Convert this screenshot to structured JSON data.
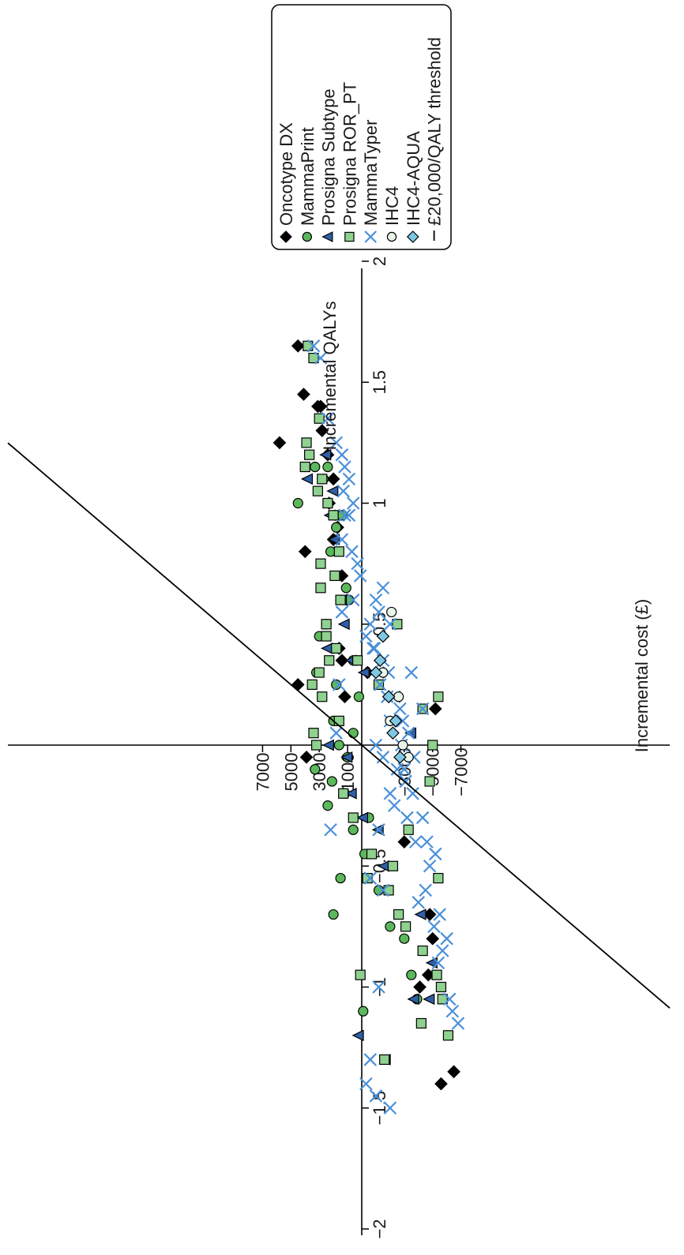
{
  "chart_data": {
    "type": "scatter",
    "rotated": "90deg-clockwise",
    "xlabel": "Incremental QALYs",
    "ylabel": "Incremental cost (£)",
    "xlim": [
      -2,
      2
    ],
    "ylim": [
      -7000,
      8000
    ],
    "x_ticks": [
      -2,
      -1.5,
      -1,
      -0.5,
      0.5,
      1,
      1.5,
      2
    ],
    "x_tick_labels": [
      "−2",
      "−1.5",
      "−1",
      "−0.5",
      "0.5",
      "1",
      "1.5",
      "2"
    ],
    "y_ticks": [
      7000,
      5000,
      3000,
      1000,
      -3000,
      -5000,
      -7000
    ],
    "y_tick_labels": [
      "7000",
      "5000",
      "3000",
      "1000",
      "−3000",
      "−5000",
      "−7000"
    ],
    "grid": false,
    "legend_position": "top-right",
    "threshold": {
      "name": "£20,000/QALY threshold",
      "slope": 20000
    },
    "series": [
      {
        "name": "Oncotype DX",
        "marker": "diamond",
        "color": "#000000",
        "points": [
          [
            1.65,
            4500
          ],
          [
            1.45,
            4100
          ],
          [
            1.4,
            3100
          ],
          [
            1.4,
            2900
          ],
          [
            1.25,
            5800
          ],
          [
            1.3,
            2800
          ],
          [
            1.2,
            2400
          ],
          [
            1.1,
            2000
          ],
          [
            1.0,
            2300
          ],
          [
            0.9,
            1700
          ],
          [
            0.85,
            2000
          ],
          [
            0.8,
            4000
          ],
          [
            0.7,
            1400
          ],
          [
            0.6,
            1000
          ],
          [
            0.4,
            1600
          ],
          [
            0.35,
            1400
          ],
          [
            0.25,
            4500
          ],
          [
            0.2,
            1200
          ],
          [
            -0.05,
            3900
          ],
          [
            -0.4,
            -3000
          ],
          [
            -0.7,
            -4800
          ],
          [
            -0.8,
            -5000
          ],
          [
            -0.95,
            -4700
          ],
          [
            -1.0,
            -4100
          ],
          [
            -1.4,
            -5600
          ],
          [
            -1.35,
            -6500
          ],
          [
            0.15,
            -5200
          ],
          [
            0.3,
            -400
          ]
        ]
      },
      {
        "name": "MammaPrint",
        "marker": "circle",
        "color": "#5cb85c",
        "points": [
          [
            1.0,
            4500
          ],
          [
            1.15,
            2400
          ],
          [
            1.1,
            2700
          ],
          [
            1.15,
            3300
          ],
          [
            0.95,
            1400
          ],
          [
            0.9,
            1800
          ],
          [
            0.8,
            2200
          ],
          [
            0.65,
            1100
          ],
          [
            0.6,
            900
          ],
          [
            0.5,
            2500
          ],
          [
            0.45,
            3000
          ],
          [
            0.3,
            3200
          ],
          [
            0.25,
            1800
          ],
          [
            0.1,
            2000
          ],
          [
            0.05,
            600
          ],
          [
            0.0,
            1600
          ],
          [
            -0.1,
            3300
          ],
          [
            -0.15,
            2100
          ],
          [
            -0.2,
            1200
          ],
          [
            -0.25,
            2400
          ],
          [
            -0.05,
            1000
          ],
          [
            -0.35,
            600
          ],
          [
            -0.45,
            -200
          ],
          [
            -0.55,
            1500
          ],
          [
            -0.7,
            2000
          ],
          [
            -0.75,
            -2000
          ],
          [
            -0.8,
            -3000
          ],
          [
            -0.95,
            -3500
          ],
          [
            -1.05,
            -3900
          ],
          [
            -1.1,
            -100
          ],
          [
            0.2,
            200
          ],
          [
            0.35,
            600
          ],
          [
            -0.3,
            -500
          ],
          [
            -0.6,
            -1200
          ]
        ]
      },
      {
        "name": "Prosigna Subtype",
        "marker": "triangle",
        "color": "#2f5fa7",
        "points": [
          [
            1.2,
            2500
          ],
          [
            1.1,
            3800
          ],
          [
            1.05,
            2000
          ],
          [
            0.95,
            2200
          ],
          [
            0.85,
            1900
          ],
          [
            0.6,
            1400
          ],
          [
            0.4,
            2400
          ],
          [
            0.35,
            700
          ],
          [
            0.0,
            2300
          ],
          [
            -0.05,
            1000
          ],
          [
            -0.2,
            700
          ],
          [
            -0.3,
            -100
          ],
          [
            -0.35,
            -1200
          ],
          [
            -0.5,
            -1600
          ],
          [
            -0.7,
            -4200
          ],
          [
            -1.05,
            -3700
          ],
          [
            -1.05,
            -4800
          ],
          [
            -1.2,
            200
          ],
          [
            -1.3,
            -1700
          ],
          [
            0.05,
            -3500
          ],
          [
            -0.9,
            -5000
          ],
          [
            0.3,
            -200
          ],
          [
            0.5,
            1200
          ]
        ]
      },
      {
        "name": "Prosigna ROR_PT",
        "marker": "square",
        "color": "#8fd18f",
        "points": [
          [
            1.65,
            3800
          ],
          [
            1.6,
            3400
          ],
          [
            1.35,
            3000
          ],
          [
            1.25,
            3900
          ],
          [
            1.2,
            3700
          ],
          [
            1.15,
            4000
          ],
          [
            1.1,
            2800
          ],
          [
            1.05,
            3100
          ],
          [
            1.0,
            2400
          ],
          [
            0.95,
            2000
          ],
          [
            0.8,
            1600
          ],
          [
            0.75,
            2900
          ],
          [
            0.7,
            1900
          ],
          [
            0.65,
            2900
          ],
          [
            0.6,
            1500
          ],
          [
            0.5,
            2500
          ],
          [
            0.45,
            2500
          ],
          [
            0.4,
            1800
          ],
          [
            0.35,
            2300
          ],
          [
            0.3,
            3000
          ],
          [
            0.25,
            3500
          ],
          [
            0.2,
            2800
          ],
          [
            0.1,
            1600
          ],
          [
            0.05,
            3400
          ],
          [
            0.0,
            3200
          ],
          [
            0.2,
            -5400
          ],
          [
            0.15,
            -4300
          ],
          [
            0.0,
            -5000
          ],
          [
            0.5,
            -2500
          ],
          [
            -0.2,
            1300
          ],
          [
            -0.3,
            600
          ],
          [
            -0.45,
            -700
          ],
          [
            -0.55,
            -400
          ],
          [
            -0.6,
            -1900
          ],
          [
            -0.7,
            -2600
          ],
          [
            -0.75,
            -3100
          ],
          [
            -0.85,
            -4300
          ],
          [
            -0.95,
            -5300
          ],
          [
            -1.0,
            -5600
          ],
          [
            -1.05,
            -5700
          ],
          [
            -1.15,
            -4200
          ],
          [
            -1.2,
            -6100
          ],
          [
            -1.3,
            -1600
          ],
          [
            -0.95,
            100
          ],
          [
            -0.55,
            -5400
          ],
          [
            -0.35,
            -3300
          ],
          [
            -0.15,
            -4800
          ],
          [
            0.35,
            300
          ],
          [
            0.25,
            -1200
          ],
          [
            -0.5,
            -2200
          ]
        ]
      },
      {
        "name": "MammaTyper",
        "marker": "x",
        "color": "#4a90d9",
        "points": [
          [
            1.65,
            3400
          ],
          [
            1.6,
            2900
          ],
          [
            1.35,
            2400
          ],
          [
            1.25,
            1800
          ],
          [
            1.2,
            1400
          ],
          [
            1.15,
            1200
          ],
          [
            1.1,
            900
          ],
          [
            1.0,
            600
          ],
          [
            0.95,
            900
          ],
          [
            0.85,
            1400
          ],
          [
            0.8,
            700
          ],
          [
            0.75,
            300
          ],
          [
            0.7,
            100
          ],
          [
            0.6,
            600
          ],
          [
            0.55,
            -1200
          ],
          [
            0.5,
            -600
          ],
          [
            0.45,
            -300
          ],
          [
            0.4,
            -900
          ],
          [
            0.35,
            -1500
          ],
          [
            0.3,
            -1900
          ],
          [
            0.25,
            -1300
          ],
          [
            0.2,
            -2300
          ],
          [
            0.15,
            -2700
          ],
          [
            0.1,
            -2900
          ],
          [
            0.05,
            -3300
          ],
          [
            0.0,
            -2800
          ],
          [
            -0.05,
            -3700
          ],
          [
            -0.1,
            -2500
          ],
          [
            -0.15,
            -3100
          ],
          [
            -0.2,
            -3600
          ],
          [
            -0.25,
            -2300
          ],
          [
            -0.3,
            -4300
          ],
          [
            -0.35,
            -1200
          ],
          [
            -0.4,
            -4600
          ],
          [
            -0.45,
            -5200
          ],
          [
            -0.5,
            -4800
          ],
          [
            -0.55,
            -600
          ],
          [
            -0.6,
            -1500
          ],
          [
            -0.65,
            -4000
          ],
          [
            -0.7,
            -5500
          ],
          [
            -0.75,
            -5100
          ],
          [
            -0.8,
            -6000
          ],
          [
            -0.85,
            -5700
          ],
          [
            -0.9,
            -5400
          ],
          [
            -1.0,
            -1200
          ],
          [
            -1.05,
            -6200
          ],
          [
            -1.1,
            -6400
          ],
          [
            -1.15,
            -6800
          ],
          [
            -1.3,
            -600
          ],
          [
            -1.4,
            -300
          ],
          [
            -1.45,
            -1000
          ],
          [
            -1.5,
            -2000
          ],
          [
            -0.35,
            2200
          ],
          [
            0.05,
            1800
          ],
          [
            0.25,
            1600
          ],
          [
            0.55,
            1400
          ],
          [
            0.95,
            1200
          ],
          [
            1.05,
            1300
          ],
          [
            0.4,
            -800
          ],
          [
            0.2,
            -1800
          ],
          [
            0.6,
            -1000
          ],
          [
            0.15,
            -4300
          ],
          [
            0.3,
            -3500
          ],
          [
            0.5,
            -2000
          ],
          [
            0.65,
            -1500
          ],
          [
            0.1,
            -2000
          ],
          [
            -0.1,
            -3000
          ],
          [
            -0.2,
            -2000
          ],
          [
            -0.3,
            -3200
          ],
          [
            -0.4,
            -3800
          ],
          [
            -0.6,
            -4500
          ],
          [
            0.0,
            -1000
          ],
          [
            -0.05,
            -1500
          ]
        ]
      },
      {
        "name": "IHC4",
        "marker": "circle-open",
        "color": "#e8f5e8",
        "points": [
          [
            0.55,
            -2100
          ],
          [
            0.2,
            -2600
          ],
          [
            0.0,
            -2900
          ],
          [
            -0.05,
            -3300
          ],
          [
            0.3,
            -1500
          ],
          [
            0.1,
            -2000
          ]
        ]
      },
      {
        "name": "IHC4-AQUA",
        "marker": "diamond",
        "color": "#7ec8e3",
        "points": [
          [
            0.45,
            -1500
          ],
          [
            0.35,
            -1300
          ],
          [
            0.2,
            -1900
          ],
          [
            0.1,
            -2400
          ],
          [
            0.05,
            -2200
          ],
          [
            -0.05,
            -2700
          ],
          [
            0.3,
            -1000
          ]
        ]
      }
    ]
  },
  "legend": {
    "entries": [
      {
        "label": "Oncotype DX",
        "marker": "diamond",
        "color": "#000000"
      },
      {
        "label": "MammaPrint",
        "marker": "circle",
        "color": "#5cb85c"
      },
      {
        "label": "Prosigna Subtype",
        "marker": "triangle",
        "color": "#2f5fa7"
      },
      {
        "label": "Prosigna ROR_PT",
        "marker": "square",
        "color": "#8fd18f"
      },
      {
        "label": "MammaTyper",
        "marker": "x",
        "color": "#4a90d9"
      },
      {
        "label": "IHC4",
        "marker": "circle-open",
        "color": "#e8f5e8"
      },
      {
        "label": "IHC4-AQUA",
        "marker": "diamond",
        "color": "#7ec8e3"
      },
      {
        "label": "£20,000/QALY threshold",
        "marker": "line",
        "color": "#000000"
      }
    ]
  }
}
